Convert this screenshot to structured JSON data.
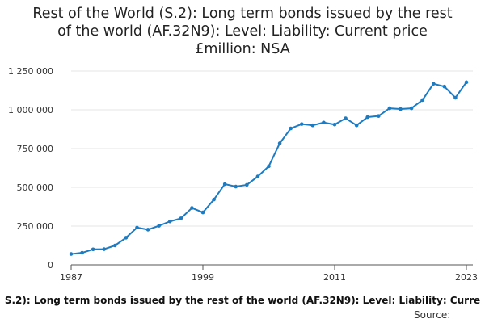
{
  "title_lines": [
    "Rest of the World (S.2): Long term bonds issued by the rest",
    "of the world (AF.32N9): Level: Liability: Current price",
    "£million: NSA"
  ],
  "footer": {
    "series_label": "S.2): Long term bonds issued by the rest of the world (AF.32N9): Level: Liability: Curre",
    "source_label": "Source:"
  },
  "colors": {
    "line": "#1f7bc0",
    "grid": "#e6e6e6",
    "axis": "#555555",
    "text": "#333333"
  },
  "chart_data": {
    "type": "line",
    "title": "Rest of the World (S.2): Long term bonds issued by the rest of the world (AF.32N9): Level: Liability: Current price £million: NSA",
    "xlabel": "",
    "ylabel": "",
    "x": [
      1987,
      1988,
      1989,
      1990,
      1991,
      1992,
      1993,
      1994,
      1995,
      1996,
      1997,
      1998,
      1999,
      2000,
      2001,
      2002,
      2003,
      2004,
      2005,
      2006,
      2007,
      2008,
      2009,
      2010,
      2011,
      2012,
      2013,
      2014,
      2015,
      2016,
      2017,
      2018,
      2019,
      2020,
      2021,
      2022,
      2023
    ],
    "series": [
      {
        "values": [
          70000,
          78000,
          100000,
          101000,
          125000,
          175000,
          240000,
          227000,
          252000,
          280000,
          300000,
          367000,
          338000,
          421000,
          521000,
          505000,
          516000,
          570000,
          636000,
          784000,
          880000,
          908000,
          900000,
          918000,
          905000,
          945000,
          900000,
          953000,
          960000,
          1010000,
          1005000,
          1010000,
          1063000,
          1168000,
          1150000,
          1078000,
          1178000
        ]
      }
    ],
    "xticks": [
      1987,
      1999,
      2011,
      2023
    ],
    "xtick_labels": [
      "1987",
      "1999",
      "2011",
      "2023"
    ],
    "yticks": [
      0,
      250000,
      500000,
      750000,
      1000000,
      1250000
    ],
    "ytick_labels": [
      "0",
      "250 000",
      "500 000",
      "750 000",
      "1 000 000",
      "1 250 000"
    ],
    "xlim": [
      1987,
      2023
    ],
    "ylim": [
      0,
      1250000
    ],
    "grid": true,
    "legend": "none"
  }
}
